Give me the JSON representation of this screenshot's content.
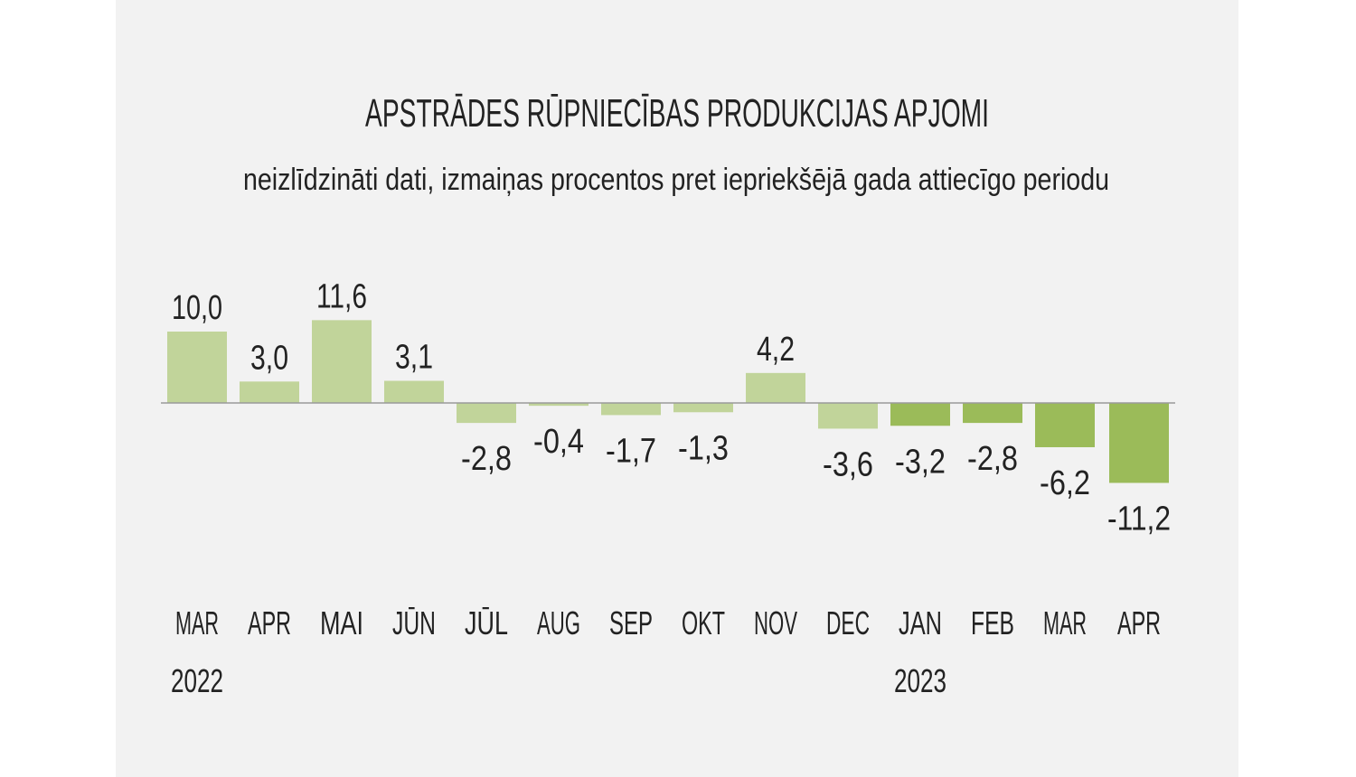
{
  "chart_data": {
    "type": "bar",
    "title": "APSTRĀDES RŪPNIECĪBAS PRODUKCIJAS APJOMI",
    "subtitle": "neizlīdzināti dati, izmaiņas procentos pret iepriekšējā gada attiecīgo periodu",
    "categories": [
      "MAR",
      "APR",
      "MAI",
      "JŪN",
      "JŪL",
      "AUG",
      "SEP",
      "OKT",
      "NOV",
      "DEC",
      "JAN",
      "FEB",
      "MAR",
      "APR"
    ],
    "year_labels": [
      {
        "index": 0,
        "label": "2022"
      },
      {
        "index": 10,
        "label": "2023"
      }
    ],
    "values": [
      10.0,
      3.0,
      11.6,
      3.1,
      -2.8,
      -0.4,
      -1.7,
      -1.3,
      4.2,
      -3.6,
      -3.2,
      -2.8,
      -6.2,
      -11.2
    ],
    "data_labels": [
      "10,0",
      "3,0",
      "11,6",
      "3,1",
      "-2,8",
      "-0,4",
      "-1,7",
      "-1,3",
      "4,2",
      "-3,6",
      "-3,2",
      "-2,8",
      "-6,2",
      "-11,2"
    ],
    "xlabel": "",
    "ylabel": "",
    "grid": false,
    "colors": {
      "2022": "#c1d49a",
      "2023": "#9bbb59",
      "axis": "#999999",
      "background": "#f2f2f2"
    }
  }
}
